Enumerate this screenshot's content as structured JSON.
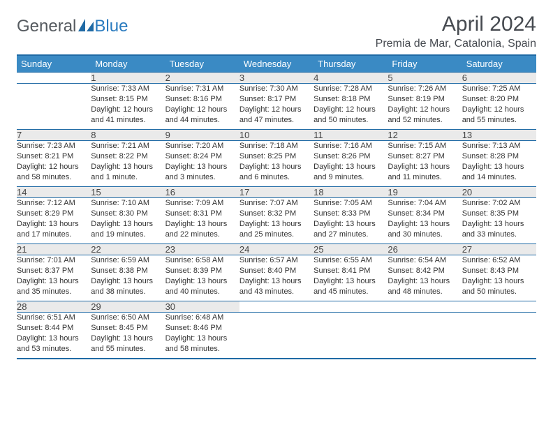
{
  "brand": {
    "part1": "General",
    "part2": "Blue"
  },
  "title": "April 2024",
  "location": "Premia de Mar, Catalonia, Spain",
  "colors": {
    "header_bg": "#3a8ac4",
    "header_text": "#ffffff",
    "border": "#1f6aa5",
    "daynum_bg": "#eaeaea",
    "text": "#333333",
    "logo_gray": "#555a5f",
    "logo_blue": "#2a7bbf"
  },
  "typography": {
    "title_fontsize": 30,
    "location_fontsize": 16,
    "header_fontsize": 13,
    "body_fontsize": 11
  },
  "weekdays": [
    "Sunday",
    "Monday",
    "Tuesday",
    "Wednesday",
    "Thursday",
    "Friday",
    "Saturday"
  ],
  "weeks": [
    [
      null,
      {
        "n": "1",
        "sr": "Sunrise: 7:33 AM",
        "ss": "Sunset: 8:15 PM",
        "d1": "Daylight: 12 hours",
        "d2": "and 41 minutes."
      },
      {
        "n": "2",
        "sr": "Sunrise: 7:31 AM",
        "ss": "Sunset: 8:16 PM",
        "d1": "Daylight: 12 hours",
        "d2": "and 44 minutes."
      },
      {
        "n": "3",
        "sr": "Sunrise: 7:30 AM",
        "ss": "Sunset: 8:17 PM",
        "d1": "Daylight: 12 hours",
        "d2": "and 47 minutes."
      },
      {
        "n": "4",
        "sr": "Sunrise: 7:28 AM",
        "ss": "Sunset: 8:18 PM",
        "d1": "Daylight: 12 hours",
        "d2": "and 50 minutes."
      },
      {
        "n": "5",
        "sr": "Sunrise: 7:26 AM",
        "ss": "Sunset: 8:19 PM",
        "d1": "Daylight: 12 hours",
        "d2": "and 52 minutes."
      },
      {
        "n": "6",
        "sr": "Sunrise: 7:25 AM",
        "ss": "Sunset: 8:20 PM",
        "d1": "Daylight: 12 hours",
        "d2": "and 55 minutes."
      }
    ],
    [
      {
        "n": "7",
        "sr": "Sunrise: 7:23 AM",
        "ss": "Sunset: 8:21 PM",
        "d1": "Daylight: 12 hours",
        "d2": "and 58 minutes."
      },
      {
        "n": "8",
        "sr": "Sunrise: 7:21 AM",
        "ss": "Sunset: 8:22 PM",
        "d1": "Daylight: 13 hours",
        "d2": "and 1 minute."
      },
      {
        "n": "9",
        "sr": "Sunrise: 7:20 AM",
        "ss": "Sunset: 8:24 PM",
        "d1": "Daylight: 13 hours",
        "d2": "and 3 minutes."
      },
      {
        "n": "10",
        "sr": "Sunrise: 7:18 AM",
        "ss": "Sunset: 8:25 PM",
        "d1": "Daylight: 13 hours",
        "d2": "and 6 minutes."
      },
      {
        "n": "11",
        "sr": "Sunrise: 7:16 AM",
        "ss": "Sunset: 8:26 PM",
        "d1": "Daylight: 13 hours",
        "d2": "and 9 minutes."
      },
      {
        "n": "12",
        "sr": "Sunrise: 7:15 AM",
        "ss": "Sunset: 8:27 PM",
        "d1": "Daylight: 13 hours",
        "d2": "and 11 minutes."
      },
      {
        "n": "13",
        "sr": "Sunrise: 7:13 AM",
        "ss": "Sunset: 8:28 PM",
        "d1": "Daylight: 13 hours",
        "d2": "and 14 minutes."
      }
    ],
    [
      {
        "n": "14",
        "sr": "Sunrise: 7:12 AM",
        "ss": "Sunset: 8:29 PM",
        "d1": "Daylight: 13 hours",
        "d2": "and 17 minutes."
      },
      {
        "n": "15",
        "sr": "Sunrise: 7:10 AM",
        "ss": "Sunset: 8:30 PM",
        "d1": "Daylight: 13 hours",
        "d2": "and 19 minutes."
      },
      {
        "n": "16",
        "sr": "Sunrise: 7:09 AM",
        "ss": "Sunset: 8:31 PM",
        "d1": "Daylight: 13 hours",
        "d2": "and 22 minutes."
      },
      {
        "n": "17",
        "sr": "Sunrise: 7:07 AM",
        "ss": "Sunset: 8:32 PM",
        "d1": "Daylight: 13 hours",
        "d2": "and 25 minutes."
      },
      {
        "n": "18",
        "sr": "Sunrise: 7:05 AM",
        "ss": "Sunset: 8:33 PM",
        "d1": "Daylight: 13 hours",
        "d2": "and 27 minutes."
      },
      {
        "n": "19",
        "sr": "Sunrise: 7:04 AM",
        "ss": "Sunset: 8:34 PM",
        "d1": "Daylight: 13 hours",
        "d2": "and 30 minutes."
      },
      {
        "n": "20",
        "sr": "Sunrise: 7:02 AM",
        "ss": "Sunset: 8:35 PM",
        "d1": "Daylight: 13 hours",
        "d2": "and 33 minutes."
      }
    ],
    [
      {
        "n": "21",
        "sr": "Sunrise: 7:01 AM",
        "ss": "Sunset: 8:37 PM",
        "d1": "Daylight: 13 hours",
        "d2": "and 35 minutes."
      },
      {
        "n": "22",
        "sr": "Sunrise: 6:59 AM",
        "ss": "Sunset: 8:38 PM",
        "d1": "Daylight: 13 hours",
        "d2": "and 38 minutes."
      },
      {
        "n": "23",
        "sr": "Sunrise: 6:58 AM",
        "ss": "Sunset: 8:39 PM",
        "d1": "Daylight: 13 hours",
        "d2": "and 40 minutes."
      },
      {
        "n": "24",
        "sr": "Sunrise: 6:57 AM",
        "ss": "Sunset: 8:40 PM",
        "d1": "Daylight: 13 hours",
        "d2": "and 43 minutes."
      },
      {
        "n": "25",
        "sr": "Sunrise: 6:55 AM",
        "ss": "Sunset: 8:41 PM",
        "d1": "Daylight: 13 hours",
        "d2": "and 45 minutes."
      },
      {
        "n": "26",
        "sr": "Sunrise: 6:54 AM",
        "ss": "Sunset: 8:42 PM",
        "d1": "Daylight: 13 hours",
        "d2": "and 48 minutes."
      },
      {
        "n": "27",
        "sr": "Sunrise: 6:52 AM",
        "ss": "Sunset: 8:43 PM",
        "d1": "Daylight: 13 hours",
        "d2": "and 50 minutes."
      }
    ],
    [
      {
        "n": "28",
        "sr": "Sunrise: 6:51 AM",
        "ss": "Sunset: 8:44 PM",
        "d1": "Daylight: 13 hours",
        "d2": "and 53 minutes."
      },
      {
        "n": "29",
        "sr": "Sunrise: 6:50 AM",
        "ss": "Sunset: 8:45 PM",
        "d1": "Daylight: 13 hours",
        "d2": "and 55 minutes."
      },
      {
        "n": "30",
        "sr": "Sunrise: 6:48 AM",
        "ss": "Sunset: 8:46 PM",
        "d1": "Daylight: 13 hours",
        "d2": "and 58 minutes."
      },
      null,
      null,
      null,
      null
    ]
  ]
}
